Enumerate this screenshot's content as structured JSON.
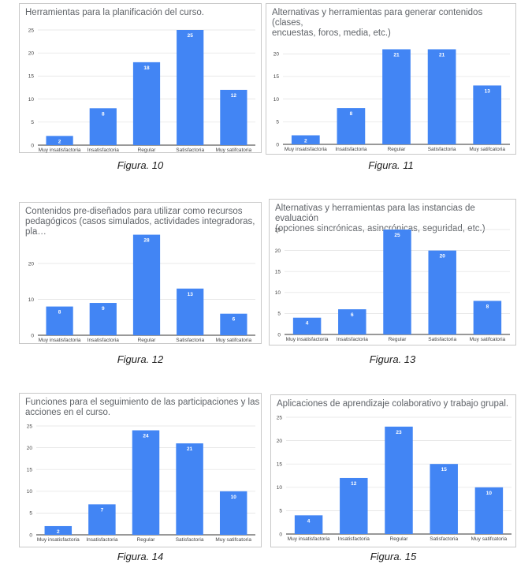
{
  "colors": {
    "bar": "#4285f4",
    "axis": "#333333",
    "grid": "#e0e0e0"
  },
  "chart_data": [
    {
      "type": "bar",
      "title": "Herramientas para la planificación del curso.",
      "caption": "Figura. 10",
      "categories": [
        "Muy insatisfactoria",
        "Insatisfactoria",
        "Regular",
        "Satisfactoria",
        "Muy satifcatoria"
      ],
      "values": [
        2,
        8,
        18,
        25,
        12
      ],
      "yticks": [
        0,
        5,
        10,
        15,
        20,
        25
      ],
      "ylim": [
        0,
        25
      ]
    },
    {
      "type": "bar",
      "title": "Alternativas y herramientas para generar contenidos (clases,\nencuestas, foros, media, etc.)",
      "caption": "Figura. 11",
      "categories": [
        "Muy insatisfactoria",
        "Insatisfactoria",
        "Regular",
        "Satisfactoria",
        "Muy satifcatoria"
      ],
      "values": [
        2,
        8,
        21,
        21,
        13
      ],
      "yticks": [
        0,
        5,
        10,
        15,
        20
      ],
      "ylim": [
        0,
        23
      ]
    },
    {
      "type": "bar",
      "title": "Contenidos pre-diseñados para utilizar como recursos\npedagógicos (casos simulados, actividades integradoras, pla…",
      "caption": "Figura. 12",
      "categories": [
        "Muy insatisfactoria",
        "Insatisfactoria",
        "Regular",
        "Satisfactoria",
        "Muy satifcatoria"
      ],
      "values": [
        8,
        9,
        28,
        13,
        6
      ],
      "yticks": [
        0,
        10,
        20
      ],
      "ylim": [
        0,
        29
      ]
    },
    {
      "type": "bar",
      "title": "Alternativas y herramientas para las instancias de evaluación\n(opciones sincrónicas, asincrónicas, seguridad, etc.)",
      "caption": "Figura. 13",
      "categories": [
        "Muy insatisfactoria",
        "Insatisfactoria",
        "Regular",
        "Satisfactoria",
        "Muy satifcatoria"
      ],
      "values": [
        4,
        6,
        25,
        20,
        8
      ],
      "yticks": [
        0,
        5,
        10,
        15,
        20,
        25
      ],
      "ylim": [
        0,
        25
      ]
    },
    {
      "type": "bar",
      "title": "Funciones para el seguimiento de las participaciones y las\nacciones en el curso.",
      "caption": "Figura. 14",
      "categories": [
        "Muy insatisfactoria",
        "Insatisfactoria",
        "Regular",
        "Satisfactoria",
        "Muy satifcatoria"
      ],
      "values": [
        2,
        7,
        24,
        21,
        10
      ],
      "yticks": [
        0,
        5,
        10,
        15,
        20,
        25
      ],
      "ylim": [
        0,
        25
      ]
    },
    {
      "type": "bar",
      "title": "Aplicaciones de aprendizaje colaborativo y trabajo grupal.",
      "caption": "Figura. 15",
      "categories": [
        "Muy insatisfactoria",
        "Insatisfactoria",
        "Regular",
        "Satisfactoria",
        "Muy satifcatoria"
      ],
      "values": [
        4,
        12,
        23,
        15,
        10
      ],
      "yticks": [
        0,
        5,
        10,
        15,
        20,
        25
      ],
      "ylim": [
        0,
        25
      ]
    }
  ]
}
